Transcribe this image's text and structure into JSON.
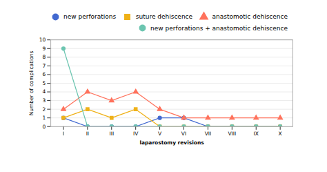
{
  "chart_data": {
    "type": "line",
    "categories": [
      "I",
      "II",
      "III",
      "IV",
      "V",
      "VI",
      "VII",
      "VIII",
      "IX",
      "X"
    ],
    "series": [
      {
        "name": "new perforations",
        "values": [
          1,
          0,
          0,
          0,
          1,
          1,
          0,
          0,
          0,
          0
        ],
        "marker": "circle"
      },
      {
        "name": "suture dehiscence",
        "values": [
          1,
          2,
          1,
          2,
          0,
          0,
          0,
          0,
          0,
          0
        ],
        "marker": "square"
      },
      {
        "name": "anastomotic dehiscence",
        "values": [
          2,
          4,
          3,
          4,
          2,
          1,
          1,
          1,
          1,
          1
        ],
        "marker": "triangle"
      },
      {
        "name": "new perforations + anastomotic dehiscence",
        "values": [
          9,
          0,
          0,
          0,
          0,
          0,
          0,
          0,
          0,
          0
        ],
        "marker": "circle"
      }
    ],
    "xlabel": "laparostomy revisions",
    "ylabel": "Number of complications",
    "ylim": [
      0,
      10
    ],
    "yticks": [
      0,
      1,
      2,
      3,
      4,
      5,
      6,
      7,
      8,
      9,
      10
    ],
    "grid": true,
    "legend": "upper right"
  }
}
